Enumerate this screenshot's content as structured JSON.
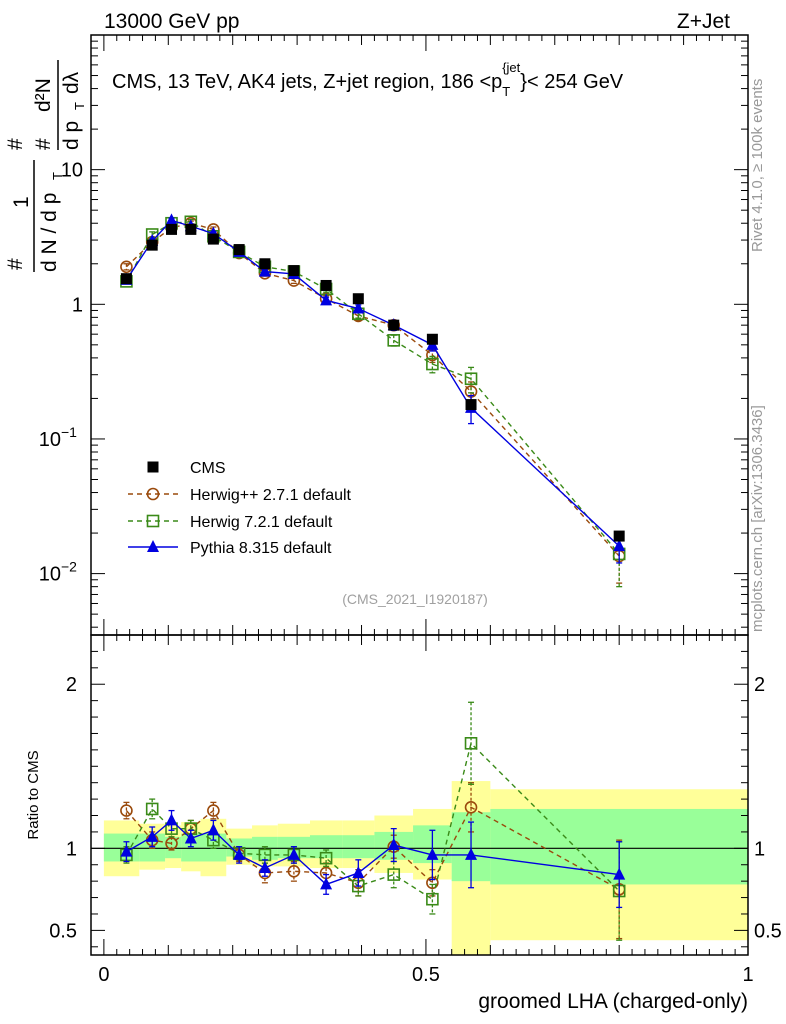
{
  "header": {
    "left": "13000 GeV pp",
    "right": "Z+Jet"
  },
  "side_labels": {
    "rivet": "Rivet 4.1.0, ≥ 100k events",
    "mcplots": "mcplots.cern.ch [arXiv:1306.3436]"
  },
  "chart_data": [
    {
      "type": "scatter",
      "panel": "main",
      "title": "CMS, 13 TeV, AK4 jets, Z+jet region, 186 <p_T^{jet}< 254 GeV",
      "title_parts": {
        "pre": "CMS, 13 TeV, AK4 jets, Z+jet region, 186 <p",
        "sub": "T",
        "sup": "{jet",
        "close": "}",
        "post": "< 254 GeV"
      },
      "ylabel": "1/(dN/dp_T) d²N/(dp_T dλ)",
      "ylabel_parts": {
        "hash": "#",
        "one": "1",
        "numer": "d²N",
        "dn": "d N / d p",
        "T": "T",
        "dp": "d p",
        "dl": "dλ"
      },
      "yscale": "log",
      "ylim": [
        0.0035,
        100
      ],
      "xlim": [
        -0.02,
        1.0
      ],
      "y_ticks": [
        {
          "value": 0.01,
          "base": "10",
          "exp": "−2"
        },
        {
          "value": 0.1,
          "base": "10",
          "exp": "−1"
        },
        {
          "value": 1,
          "label": "1"
        },
        {
          "value": 10,
          "label": "10"
        }
      ],
      "watermark": "(CMS_2021_I1920187)",
      "x": [
        0.035,
        0.075,
        0.105,
        0.135,
        0.17,
        0.21,
        0.25,
        0.295,
        0.345,
        0.395,
        0.45,
        0.51,
        0.57,
        0.8
      ],
      "series": [
        {
          "name": "CMS",
          "style": "data",
          "color": "#000000",
          "values": [
            1.55,
            2.75,
            3.6,
            3.6,
            3.05,
            2.55,
            2.0,
            1.78,
            1.38,
            1.1,
            0.7,
            0.55,
            0.18,
            0.019
          ],
          "errors": [
            0.05,
            0.08,
            0.1,
            0.1,
            0.09,
            0.07,
            0.06,
            0.05,
            0.05,
            0.04,
            0.03,
            0.03,
            0.01,
            0.001
          ]
        },
        {
          "name": "Herwig++ 2.7.1 default",
          "style": "circle-open",
          "color": "#9a4a0c",
          "values": [
            1.9,
            2.9,
            3.7,
            4.0,
            3.6,
            2.4,
            1.7,
            1.5,
            1.1,
            0.82,
            0.7,
            0.42,
            0.225,
            0.0135
          ],
          "errors": [
            0.1,
            0.12,
            0.14,
            0.15,
            0.15,
            0.1,
            0.08,
            0.07,
            0.06,
            0.06,
            0.05,
            0.05,
            0.04,
            0.005
          ]
        },
        {
          "name": "Herwig 7.2.1 default",
          "style": "square-open",
          "color": "#3a8a18",
          "values": [
            1.48,
            3.3,
            4.0,
            4.1,
            3.2,
            2.45,
            1.9,
            1.75,
            1.3,
            0.85,
            0.54,
            0.36,
            0.28,
            0.014
          ],
          "errors": [
            0.06,
            0.15,
            0.15,
            0.16,
            0.13,
            0.1,
            0.08,
            0.07,
            0.07,
            0.06,
            0.05,
            0.05,
            0.06,
            0.006
          ]
        },
        {
          "name": "Pythia 8.315 default",
          "style": "triangle",
          "color": "#0000e0",
          "values": [
            1.52,
            2.95,
            4.2,
            3.8,
            3.35,
            2.45,
            1.75,
            1.68,
            1.07,
            0.93,
            0.7,
            0.5,
            0.17,
            0.016
          ],
          "errors": [
            0.06,
            0.1,
            0.16,
            0.14,
            0.12,
            0.1,
            0.07,
            0.07,
            0.06,
            0.06,
            0.06,
            0.05,
            0.04,
            0.004
          ]
        }
      ]
    },
    {
      "type": "scatter",
      "panel": "ratio",
      "ylabel": "Ratio to CMS",
      "xlabel": "groomed LHA (charged-only)",
      "ylim": [
        0.35,
        2.3
      ],
      "xlim": [
        -0.02,
        1.0
      ],
      "y_ticks": [
        0.5,
        1,
        2
      ],
      "y_tick_labels": [
        "0.5",
        "1",
        "2"
      ],
      "x_ticks": [
        0,
        0.5,
        1
      ],
      "x_tick_labels": [
        "0",
        "0.5",
        "1"
      ],
      "bands": {
        "edges": [
          0.0,
          0.055,
          0.095,
          0.12,
          0.15,
          0.19,
          0.23,
          0.27,
          0.32,
          0.37,
          0.42,
          0.48,
          0.54,
          0.6,
          1.0
        ],
        "stat_lo": [
          0.92,
          0.92,
          0.94,
          0.92,
          0.92,
          0.95,
          0.93,
          0.94,
          0.94,
          0.94,
          0.93,
          0.91,
          0.8,
          0.78
        ],
        "stat_hi": [
          1.09,
          1.09,
          1.07,
          1.09,
          1.09,
          1.06,
          1.07,
          1.07,
          1.08,
          1.08,
          1.1,
          1.14,
          1.22,
          1.24
        ],
        "total_lo": [
          0.83,
          0.87,
          0.88,
          0.86,
          0.83,
          0.9,
          0.89,
          0.89,
          0.88,
          0.88,
          0.85,
          0.81,
          0.34,
          0.44
        ],
        "total_hi": [
          1.17,
          1.15,
          1.14,
          1.16,
          1.18,
          1.12,
          1.14,
          1.15,
          1.17,
          1.17,
          1.2,
          1.24,
          1.41,
          1.36
        ],
        "stat_color": "#99ff99",
        "total_color": "#ffff99"
      },
      "series": [
        {
          "name": "Herwig++ 2.7.1 default",
          "style": "circle-open",
          "color": "#9a4a0c",
          "values": [
            1.23,
            1.05,
            1.03,
            1.12,
            1.23,
            0.96,
            0.85,
            0.86,
            0.85,
            0.79,
            1.01,
            0.79,
            1.25,
            0.75
          ],
          "errors": [
            0.05,
            0.05,
            0.04,
            0.05,
            0.05,
            0.04,
            0.06,
            0.06,
            0.06,
            0.08,
            0.07,
            0.08,
            0.15,
            0.3
          ]
        },
        {
          "name": "Herwig 7.2.1 default",
          "style": "square-open",
          "color": "#3a8a18",
          "values": [
            0.96,
            1.24,
            1.12,
            1.12,
            1.05,
            0.97,
            0.96,
            0.96,
            0.94,
            0.77,
            0.84,
            0.69,
            1.64,
            0.74
          ],
          "errors": [
            0.05,
            0.06,
            0.05,
            0.05,
            0.05,
            0.04,
            0.05,
            0.05,
            0.05,
            0.06,
            0.08,
            0.09,
            0.25,
            0.3
          ]
        },
        {
          "name": "Pythia 8.315 default",
          "style": "triangle",
          "color": "#0000e0",
          "values": [
            0.98,
            1.07,
            1.17,
            1.06,
            1.11,
            0.96,
            0.88,
            0.96,
            0.78,
            0.85,
            1.02,
            0.96,
            0.96,
            0.84
          ],
          "errors": [
            0.06,
            0.06,
            0.06,
            0.05,
            0.06,
            0.05,
            0.05,
            0.05,
            0.06,
            0.08,
            0.1,
            0.15,
            0.2,
            0.2
          ]
        }
      ]
    }
  ]
}
